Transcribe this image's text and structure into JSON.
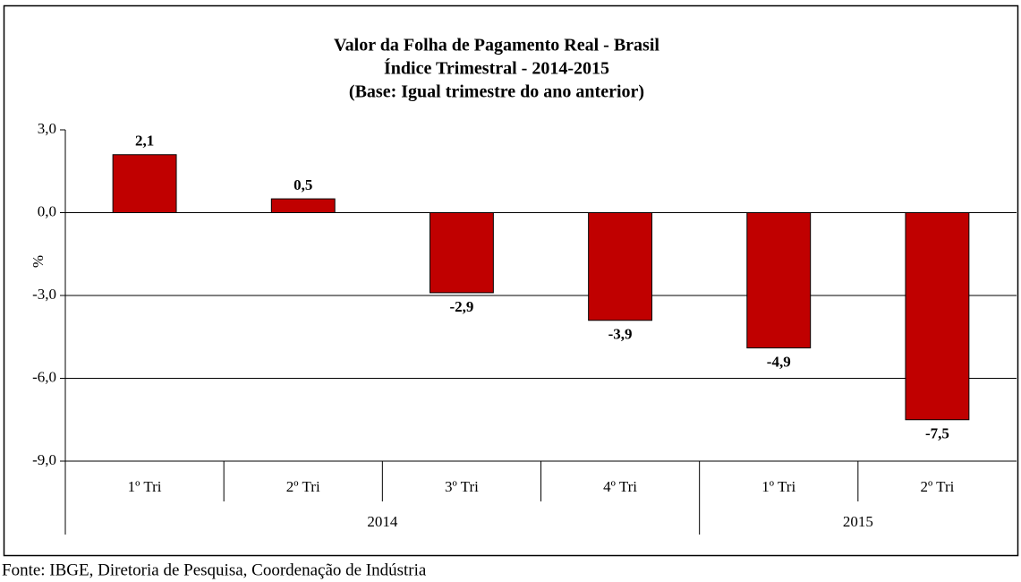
{
  "chart_data": {
    "type": "bar",
    "title": "Valor da Folha de Pagamento Real - Brasil",
    "subtitle": [
      "Índice Trimestral - 2014-2015",
      "(Base: Igual trimestre do ano anterior)"
    ],
    "ylabel": "%",
    "groups": [
      {
        "name": "2014",
        "categories": [
          "1º Tri",
          "2º Tri",
          "3º Tri",
          "4º Tri"
        ]
      },
      {
        "name": "2015",
        "categories": [
          "1º Tri",
          "2º Tri"
        ]
      }
    ],
    "values": [
      2.1,
      0.5,
      -2.9,
      -3.9,
      -4.9,
      -7.5
    ],
    "value_labels": [
      "2,1",
      "0,5",
      "-2,9",
      "-3,9",
      "-4,9",
      "-7,5"
    ],
    "color": "#c00000",
    "ylim": [
      -9,
      3
    ],
    "yticks": [
      {
        "value": 3,
        "label": "3,0"
      },
      {
        "value": 0,
        "label": "0,0"
      },
      {
        "value": -3,
        "label": "-3,0"
      },
      {
        "value": -6,
        "label": "-6,0"
      },
      {
        "value": -9,
        "label": "-9,0"
      }
    ],
    "grid": true,
    "source": "Fonte: IBGE, Diretoria de Pesquisa, Coordenação de Indústria"
  }
}
